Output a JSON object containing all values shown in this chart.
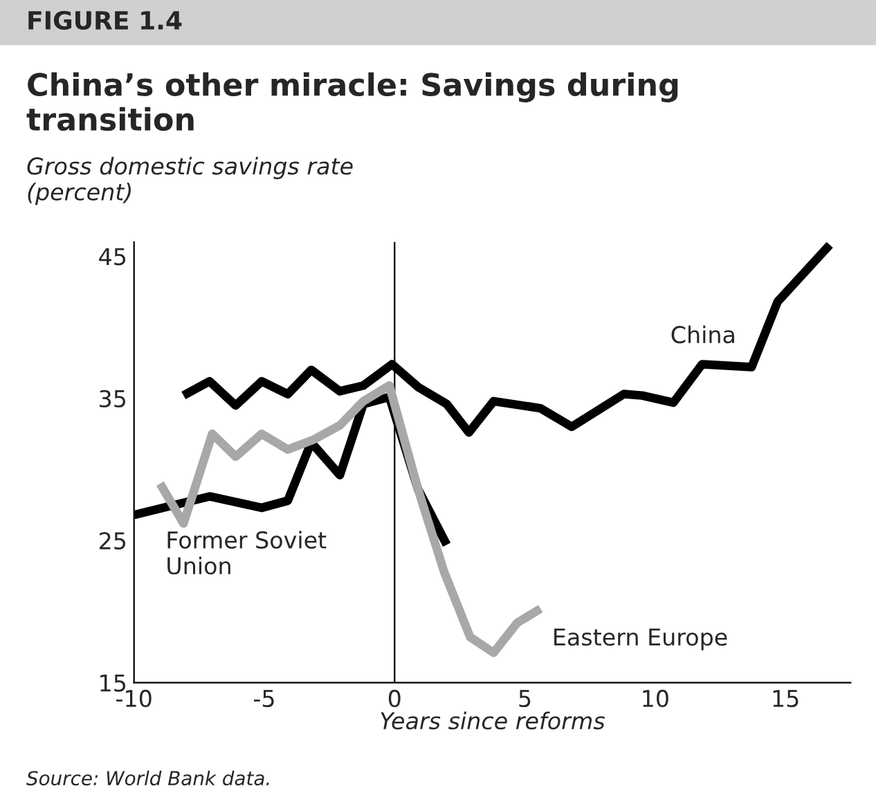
{
  "chart_data": {
    "type": "line",
    "title": "China’s other miracle: Savings during\ntransition",
    "ylabel": "Gross domestic savings rate\n(percent)",
    "xlabel": "Years since reforms",
    "annotations": [
      "FIGURE 1.4",
      "Source: World Bank data."
    ],
    "series": [
      {
        "name": "China",
        "color": "#000000",
        "x": [
          -8.1,
          -7.1,
          -6.1,
          -5.1,
          -4.1,
          -3.2,
          -2.1,
          -1.2,
          -0.1,
          0.9,
          2.0,
          2.85,
          3.8,
          5.6,
          6.8,
          8.8,
          9.5,
          10.7,
          11.8,
          13.7,
          14.7,
          16.7
        ],
        "values": [
          35.2,
          36.2,
          34.5,
          36.2,
          35.3,
          37.0,
          35.5,
          35.9,
          37.4,
          35.8,
          34.6,
          32.6,
          34.8,
          34.3,
          33.0,
          35.3,
          35.2,
          34.7,
          37.4,
          37.2,
          41.8,
          45.8
        ]
      },
      {
        "name": "Former Soviet Union",
        "color": "#000000",
        "x": [
          -10,
          -7.1,
          -5.1,
          -4.1,
          -3.2,
          -2.1,
          -1.2,
          -0.2,
          0.9,
          2.0
        ],
        "values": [
          26.8,
          28.1,
          27.3,
          27.8,
          31.9,
          29.6,
          34.6,
          35.1,
          28.6,
          24.7
        ]
      },
      {
        "name": "Eastern Europe",
        "color": "#a8a8a8",
        "x": [
          -9.0,
          -8.1,
          -7.0,
          -6.1,
          -5.1,
          -4.1,
          -3.1,
          -2.1,
          -1.2,
          -0.2,
          0.9,
          1.9,
          2.9,
          3.8,
          4.7,
          5.6
        ],
        "values": [
          29.0,
          26.2,
          32.5,
          30.9,
          32.5,
          31.4,
          32.1,
          33.1,
          34.8,
          35.9,
          28.6,
          22.8,
          18.2,
          17.1,
          19.2,
          20.2
        ]
      }
    ],
    "xlim": [
      -10,
      17.5
    ],
    "xticks": [
      -10,
      -5,
      0,
      5,
      10,
      15
    ],
    "ylim": [
      15,
      46
    ],
    "yticks": [
      15,
      25,
      35,
      45
    ],
    "ref_lines": [
      {
        "axis": "x",
        "value": 0,
        "color": "#000000"
      }
    ],
    "grid": false,
    "legend": false,
    "marker": "none",
    "line_style": "solid"
  }
}
